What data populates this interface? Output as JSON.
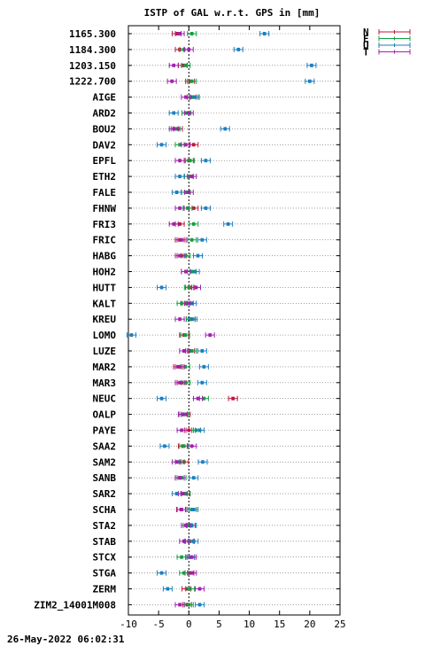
{
  "chart_data": {
    "type": "scatter",
    "title": "ISTP of GAL w.r.t. GPS in [mm]",
    "xlabel": "",
    "ylabel": "",
    "xlim": [
      -10,
      25
    ],
    "xticks": [
      -10,
      -5,
      0,
      5,
      10,
      15,
      20,
      25
    ],
    "grid": "dotted horizontal at each station",
    "legend_placement": "top-right, outside plot",
    "categories": [
      "1165.300",
      "1184.300",
      "1203.150",
      "1222.700",
      "AIGE",
      "ARD2",
      "BOU2",
      "DAV2",
      "EPFL",
      "ETH2",
      "FALE",
      "FHNW",
      "FRI3",
      "FRIC",
      "HABG",
      "HOH2",
      "HUTT",
      "KALT",
      "KREU",
      "LOMO",
      "LUZE",
      "MAR2",
      "MAR3",
      "NEUC",
      "OALP",
      "PAYE",
      "SAA2",
      "SAM2",
      "SANB",
      "SAR2",
      "SCHA",
      "STA2",
      "STAB",
      "STCX",
      "STGA",
      "ZERM",
      "ZIM2_14001M008"
    ],
    "series": [
      {
        "name": "N",
        "color": "#c0143c",
        "values": [
          -2.0,
          -1.5,
          -1.0,
          0.2,
          0.5,
          -0.4,
          -1.8,
          0.8,
          0.0,
          0.0,
          -0.5,
          0.8,
          -1.5,
          -1.5,
          -1.2,
          -0.5,
          0.2,
          -0.5,
          0.3,
          -0.8,
          0.2,
          -1.8,
          -1.2,
          7.3,
          -0.5,
          0.0,
          -1.0,
          -0.8,
          -1.5,
          -0.6,
          -1.3,
          0.3,
          0.2,
          0.2,
          0.1,
          -0.4,
          -0.3
        ]
      },
      {
        "name": "E",
        "color": "#10a040",
        "values": [
          0.5,
          -0.8,
          -0.5,
          0.5,
          0.8,
          -0.4,
          -2.2,
          -1.5,
          0.2,
          0.0,
          -0.5,
          -0.2,
          0.8,
          0.5,
          -0.5,
          0.5,
          0.0,
          -1.2,
          0.3,
          -0.6,
          0.5,
          -0.6,
          -0.5,
          2.5,
          -0.8,
          1.2,
          -0.8,
          -1.5,
          -1.2,
          -0.5,
          0.5,
          -0.2,
          0.0,
          -1.2,
          -0.8,
          0.2,
          0.0
        ]
      },
      {
        "name": "U",
        "color": "#1a7fc0",
        "values": [
          12.5,
          8.2,
          20.3,
          20.0,
          1.0,
          -2.5,
          6.0,
          -4.5,
          2.8,
          -1.5,
          -2.0,
          2.8,
          6.5,
          2.2,
          1.5,
          1.0,
          -4.5,
          0.5,
          0.6,
          -9.5,
          2.2,
          2.5,
          2.2,
          -4.5,
          -1.0,
          1.8,
          -4.0,
          2.3,
          0.8,
          -2.0,
          0.8,
          0.5,
          0.8,
          0.2,
          -4.5,
          -3.5,
          1.8
        ]
      },
      {
        "name": "T",
        "color": "#a020b0",
        "values": [
          -1.5,
          0.0,
          -2.5,
          -2.8,
          -0.5,
          0.0,
          -2.5,
          -0.5,
          -1.5,
          0.5,
          0.0,
          -1.5,
          -2.5,
          -1.2,
          -1.5,
          -0.5,
          1.2,
          0.0,
          -1.5,
          3.5,
          -0.8,
          -1.5,
          -1.5,
          1.5,
          -1.0,
          -1.2,
          0.5,
          -2.0,
          -1.5,
          -1.0,
          -1.2,
          -0.5,
          -0.8,
          0.5,
          0.5,
          1.8,
          -1.5
        ]
      }
    ]
  },
  "footer": {
    "timestamp": "26-May-2022 06:02:31"
  }
}
